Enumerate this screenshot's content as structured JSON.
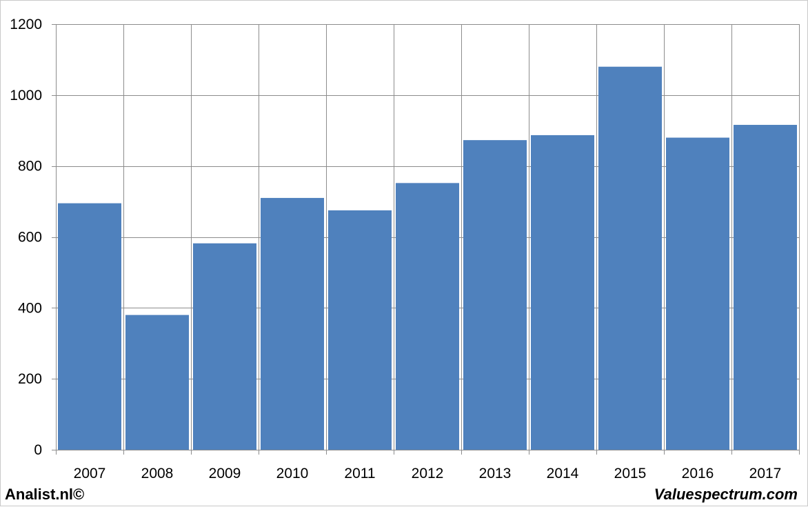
{
  "chart_data": {
    "type": "bar",
    "categories": [
      "2007",
      "2008",
      "2009",
      "2010",
      "2011",
      "2012",
      "2013",
      "2014",
      "2015",
      "2016",
      "2017"
    ],
    "values": [
      695,
      380,
      582,
      710,
      675,
      752,
      873,
      887,
      1080,
      880,
      916
    ],
    "title": "",
    "xlabel": "",
    "ylabel": "",
    "ylim": [
      0,
      1200
    ],
    "yticks": [
      0,
      200,
      400,
      600,
      800,
      1000,
      1200
    ],
    "grid": true,
    "bar_color": "#4f81bd"
  },
  "footer": {
    "left": "Analist.nl©",
    "right": "Valuespectrum.com"
  }
}
